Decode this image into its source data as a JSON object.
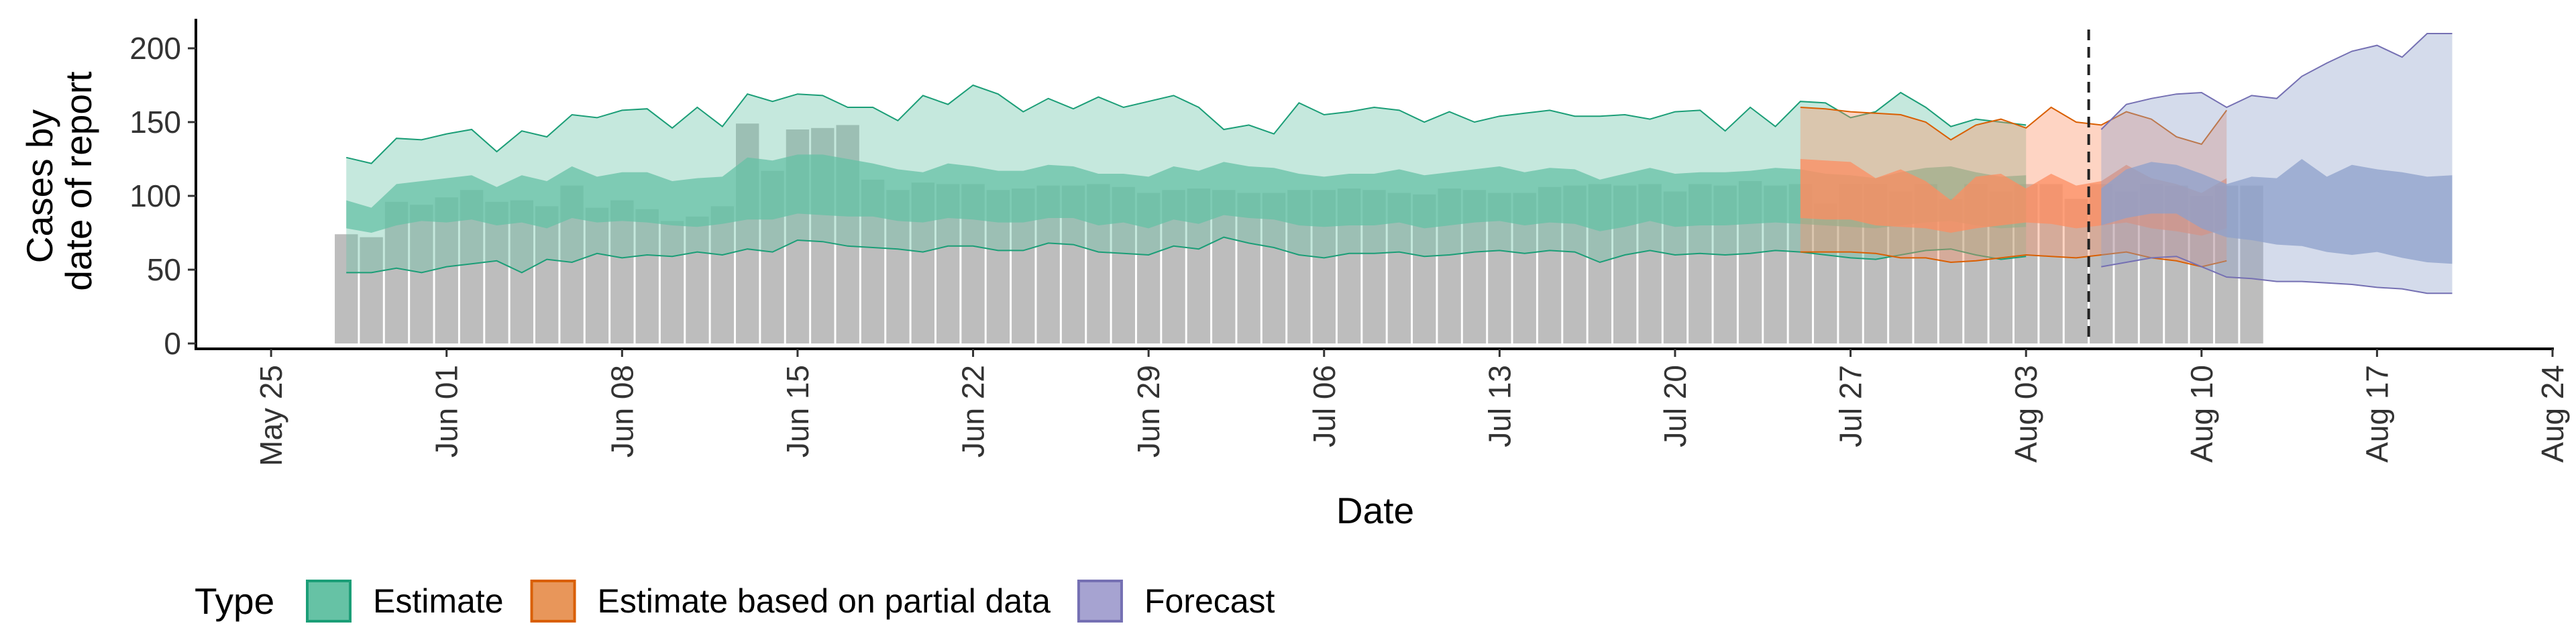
{
  "chart_data": {
    "type": "bar",
    "xlabel": "Date",
    "ylabel_lines": [
      "Cases by",
      "date of report"
    ],
    "ylim": [
      0,
      220
    ],
    "yticks": [
      0,
      50,
      100,
      150,
      200
    ],
    "xlim": [
      "2022-05-22",
      "2022-08-24"
    ],
    "xticks": [
      {
        "date": "2022-05-25",
        "label": "May 25"
      },
      {
        "date": "2022-06-01",
        "label": "Jun 01"
      },
      {
        "date": "2022-06-08",
        "label": "Jun 08"
      },
      {
        "date": "2022-06-15",
        "label": "Jun 15"
      },
      {
        "date": "2022-06-22",
        "label": "Jun 22"
      },
      {
        "date": "2022-06-29",
        "label": "Jun 29"
      },
      {
        "date": "2022-07-06",
        "label": "Jul 06"
      },
      {
        "date": "2022-07-13",
        "label": "Jul 13"
      },
      {
        "date": "2022-07-20",
        "label": "Jul 20"
      },
      {
        "date": "2022-07-27",
        "label": "Jul 27"
      },
      {
        "date": "2022-08-03",
        "label": "Aug 03"
      },
      {
        "date": "2022-08-10",
        "label": "Aug 10"
      },
      {
        "date": "2022-08-17",
        "label": "Aug 17"
      },
      {
        "date": "2022-08-24",
        "label": "Aug 24"
      }
    ],
    "bar_color": "#bdbdbd",
    "reported_cases": {
      "start_date": "2022-05-28",
      "values": [
        74,
        72,
        96,
        94,
        99,
        104,
        96,
        97,
        93,
        107,
        92,
        97,
        91,
        83,
        86,
        93,
        149,
        117,
        145,
        146,
        148,
        111,
        104,
        109,
        108,
        108,
        104,
        105,
        107,
        107,
        108,
        106,
        102,
        104,
        105,
        104,
        102,
        102,
        104,
        104,
        105,
        104,
        102,
        101,
        105,
        104,
        102,
        102,
        106,
        107,
        108,
        107,
        108,
        103,
        108,
        107,
        110,
        107,
        108,
        95,
        108,
        108,
        103,
        108,
        98,
        108,
        103,
        108,
        108,
        98,
        108,
        103,
        108,
        107,
        100,
        107,
        107
      ]
    },
    "forecast_start_line": "2022-08-05",
    "series": [
      {
        "name": "Estimate",
        "color": "#1b9e77",
        "fill": "#66c2a5",
        "start_date": "2022-05-28",
        "outer_lower": [
          48,
          48,
          51,
          48,
          52,
          54,
          56,
          48,
          57,
          55,
          61,
          58,
          60,
          59,
          62,
          60,
          64,
          62,
          70,
          69,
          66,
          65,
          64,
          62,
          66,
          66,
          63,
          63,
          68,
          67,
          62,
          61,
          60,
          66,
          64,
          72,
          68,
          65,
          60,
          58,
          61,
          61,
          62,
          59,
          60,
          62,
          63,
          61,
          63,
          62,
          55,
          60,
          63,
          60,
          61,
          60,
          61,
          63,
          62,
          60,
          58,
          57,
          60,
          63,
          64,
          60,
          57,
          59
        ],
        "inner_lower": [
          78,
          75,
          80,
          83,
          82,
          84,
          80,
          82,
          78,
          85,
          82,
          83,
          82,
          80,
          79,
          81,
          84,
          84,
          88,
          87,
          86,
          86,
          83,
          82,
          85,
          84,
          82,
          82,
          85,
          85,
          80,
          82,
          78,
          84,
          81,
          87,
          85,
          84,
          80,
          79,
          80,
          80,
          82,
          78,
          80,
          82,
          83,
          80,
          82,
          81,
          76,
          79,
          83,
          79,
          80,
          80,
          81,
          82,
          81,
          80,
          79,
          78,
          80,
          82,
          83,
          80,
          78,
          79
        ],
        "inner_upper": [
          97,
          92,
          108,
          110,
          112,
          114,
          106,
          114,
          110,
          120,
          113,
          116,
          116,
          110,
          112,
          113,
          126,
          124,
          128,
          128,
          125,
          122,
          118,
          116,
          122,
          120,
          117,
          117,
          121,
          120,
          115,
          115,
          113,
          120,
          117,
          123,
          120,
          119,
          115,
          113,
          115,
          115,
          118,
          114,
          116,
          118,
          120,
          116,
          119,
          118,
          111,
          115,
          119,
          115,
          116,
          116,
          117,
          119,
          118,
          115,
          114,
          112,
          116,
          119,
          120,
          116,
          113,
          114
        ],
        "outer_upper": [
          126,
          122,
          139,
          138,
          142,
          145,
          130,
          144,
          140,
          155,
          153,
          158,
          159,
          146,
          160,
          147,
          169,
          164,
          169,
          168,
          160,
          160,
          151,
          168,
          162,
          175,
          169,
          157,
          166,
          159,
          167,
          160,
          164,
          168,
          160,
          145,
          148,
          142,
          163,
          155,
          157,
          160,
          158,
          150,
          157,
          150,
          154,
          156,
          158,
          154,
          154,
          155,
          152,
          157,
          158,
          144,
          160,
          147,
          164,
          163,
          153,
          157,
          170,
          160,
          147,
          152,
          150,
          148
        ]
      },
      {
        "name": "Estimate based on partial data",
        "color": "#d95f02",
        "fill": "#fc8d62",
        "start_date": "2022-07-25",
        "outer_lower": [
          62,
          62,
          62,
          61,
          58,
          58,
          55,
          56,
          58,
          60,
          59,
          58,
          60,
          62,
          58,
          56,
          52,
          56
        ],
        "inner_lower": [
          85,
          84,
          84,
          80,
          79,
          78,
          75,
          78,
          80,
          82,
          81,
          78,
          80,
          82,
          78,
          76,
          73,
          78
        ],
        "inner_upper": [
          125,
          124,
          123,
          112,
          118,
          110,
          97,
          113,
          115,
          105,
          115,
          107,
          110,
          121,
          112,
          108,
          102,
          112
        ],
        "outer_upper": [
          160,
          159,
          157,
          156,
          155,
          150,
          138,
          148,
          152,
          146,
          160,
          150,
          148,
          157,
          152,
          140,
          135,
          158
        ]
      },
      {
        "name": "Forecast",
        "color": "#7570b3",
        "fill": "#8da0cb",
        "start_date": "2022-08-06",
        "outer_lower": [
          52,
          55,
          58,
          59,
          52,
          45,
          44,
          42,
          42,
          41,
          40,
          38,
          37,
          34,
          34
        ],
        "inner_lower": [
          80,
          85,
          88,
          88,
          78,
          72,
          70,
          67,
          66,
          62,
          60,
          62,
          58,
          55,
          54
        ],
        "inner_upper": [
          105,
          118,
          123,
          121,
          115,
          108,
          113,
          112,
          125,
          113,
          121,
          118,
          116,
          113,
          114
        ],
        "outer_upper": [
          145,
          162,
          166,
          169,
          170,
          160,
          168,
          166,
          181,
          190,
          198,
          202,
          194,
          210,
          210
        ]
      }
    ],
    "legend": {
      "title": "Type",
      "position": "bottom-left",
      "items": [
        {
          "label": "Estimate",
          "fill": "#66c2a5",
          "border": "#1b9e77"
        },
        {
          "label": "Estimate based on partial data",
          "fill": "#e8965a",
          "border": "#d95f02"
        },
        {
          "label": "Forecast",
          "fill": "#a6a3d1",
          "border": "#7570b3"
        }
      ]
    },
    "grid": false
  }
}
